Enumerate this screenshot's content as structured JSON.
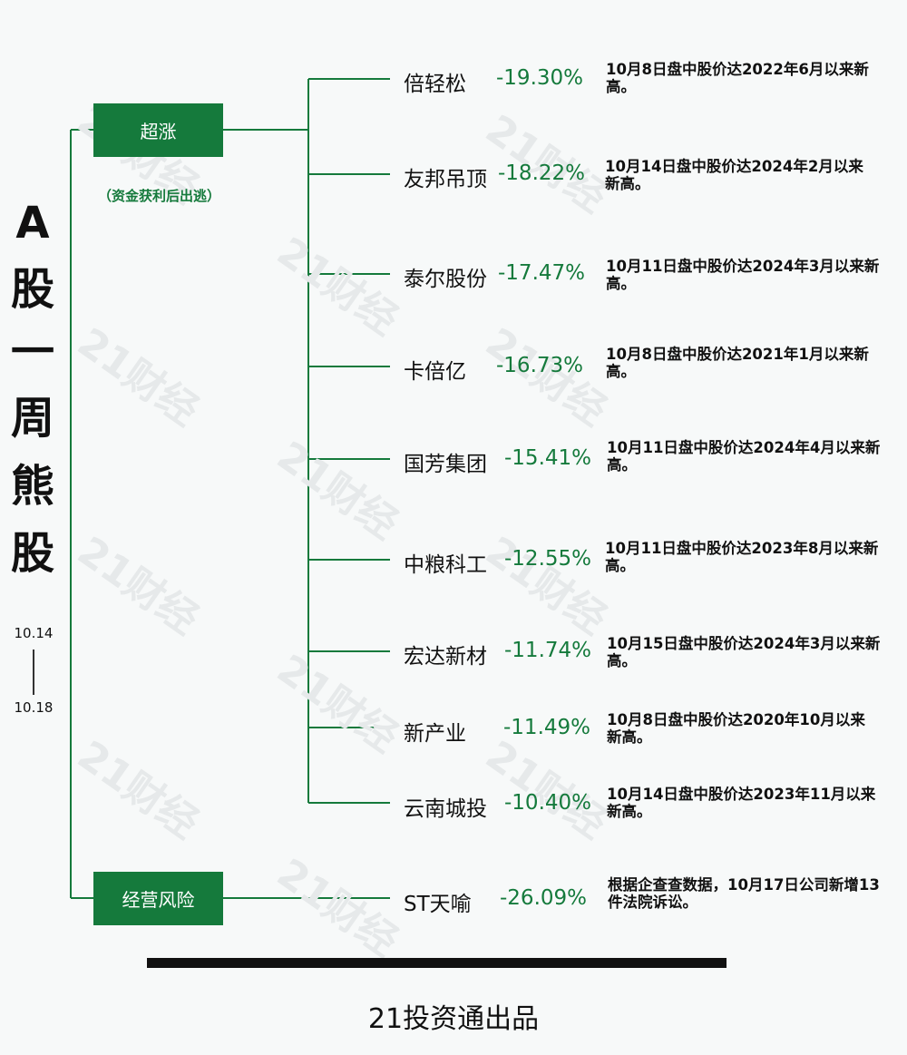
{
  "title_chars": [
    "A",
    "股",
    "一",
    "周",
    "熊",
    "股"
  ],
  "date_start": "10.14",
  "date_end": "10.18",
  "watermark_text": "21财经",
  "colors": {
    "accent": "#157a3c",
    "negative_text": "#157a3c",
    "background": "#f7f9f9"
  },
  "categories": [
    {
      "label": "超涨",
      "note": "（资金获利后出逃）",
      "stocks": [
        {
          "name": "倍轻松",
          "change": "-19.30%",
          "note": "10月8日盘中股价达2022年6月以来新高。"
        },
        {
          "name": "友邦吊顶",
          "change": "-18.22%",
          "note": "10月14日盘中股价达2024年2月以来新高。"
        },
        {
          "name": "泰尔股份",
          "change": "-17.47%",
          "note": "10月11日盘中股价达2024年3月以来新高。"
        },
        {
          "name": "卡倍亿",
          "change": "-16.73%",
          "note": "10月8日盘中股价达2021年1月以来新高。"
        },
        {
          "name": "国芳集团",
          "change": "-15.41%",
          "note": "10月11日盘中股价达2024年4月以来新高。"
        },
        {
          "name": "中粮科工",
          "change": "-12.55%",
          "note": "10月11日盘中股价达2023年8月以来新高。"
        },
        {
          "name": "宏达新材",
          "change": "-11.74%",
          "note": "10月15日盘中股价达2024年3月以来新高。"
        },
        {
          "name": "新产业",
          "change": "-11.49%",
          "note": "10月8日盘中股价达2020年10月以来新高。"
        },
        {
          "name": "云南城投",
          "change": "-10.40%",
          "note": "10月14日盘中股价达2023年11月以来新高。"
        }
      ]
    },
    {
      "label": "经营风险",
      "stocks": [
        {
          "name": "ST天喻",
          "change": "-26.09%",
          "note": "根据企查查数据，10月17日公司新增13件法院诉讼。"
        }
      ]
    }
  ],
  "footer": "21投资通出品"
}
